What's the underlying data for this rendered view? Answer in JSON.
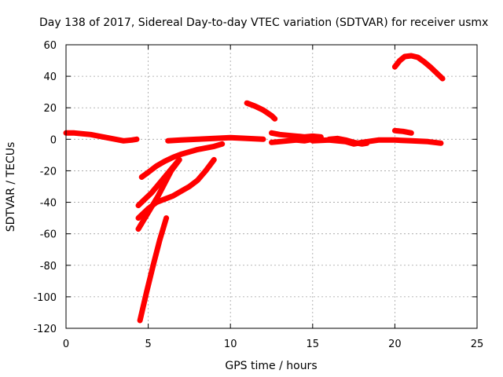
{
  "chart_data": {
    "type": "line",
    "title": "Day 138 of 2017, Sidereal Day-to-day VTEC variation (SDTVAR) for receiver usmx",
    "xlabel": "GPS time / hours",
    "ylabel": "SDTVAR / TECUs",
    "xlim": [
      0,
      25
    ],
    "ylim": [
      -120,
      60
    ],
    "x_ticks": [
      0,
      5,
      10,
      15,
      20,
      25
    ],
    "y_ticks": [
      -120,
      -100,
      -80,
      -60,
      -40,
      -20,
      0,
      20,
      40,
      60
    ],
    "grid": true,
    "color": "#ff0000",
    "series": [
      {
        "name": "sat-a",
        "x": [
          0,
          0.5,
          1,
          1.5,
          2,
          2.5,
          3,
          3.5,
          4,
          4.3
        ],
        "y": [
          4,
          4,
          3.5,
          3,
          2,
          1,
          0,
          -1,
          -0.5,
          0
        ]
      },
      {
        "name": "sat-b",
        "x": [
          6.2,
          7,
          8,
          9,
          10,
          11,
          12
        ],
        "y": [
          -1,
          -0.5,
          0,
          0.5,
          1,
          0.5,
          0
        ]
      },
      {
        "name": "sat-c",
        "x": [
          4.6,
          5,
          5.5,
          6,
          6.5,
          7,
          7.5,
          8,
          8.5,
          9,
          9.5
        ],
        "y": [
          -24,
          -21,
          -17,
          -14,
          -11.5,
          -9.5,
          -8,
          -6.5,
          -5.5,
          -4.5,
          -3
        ]
      },
      {
        "name": "sat-d",
        "x": [
          4.4,
          4.8,
          5.2,
          5.6,
          6,
          6.4,
          6.8
        ],
        "y": [
          -42,
          -38,
          -34,
          -29,
          -24,
          -19,
          -14
        ]
      },
      {
        "name": "sat-e",
        "x": [
          4.4,
          5,
          5.5,
          6,
          6.5,
          7,
          7.5,
          8,
          8.5,
          9
        ],
        "y": [
          -50,
          -44,
          -40,
          -38,
          -36,
          -33,
          -30,
          -26,
          -20,
          -13
        ]
      },
      {
        "name": "sat-f",
        "x": [
          4.4,
          4.8,
          5.2,
          5.6,
          6,
          6.4,
          6.9
        ],
        "y": [
          -57,
          -50,
          -43,
          -36,
          -28,
          -20,
          -13
        ]
      },
      {
        "name": "sat-g",
        "x": [
          4.5,
          4.9,
          5.3,
          5.7,
          6.1
        ],
        "y": [
          -115,
          -97,
          -80,
          -64,
          -50
        ]
      },
      {
        "name": "sat-h",
        "x": [
          11,
          11.5,
          12,
          12.5,
          12.7
        ],
        "y": [
          23,
          21,
          18.5,
          15,
          13
        ]
      },
      {
        "name": "sat-i",
        "x": [
          12.5,
          13,
          13.5,
          14,
          14.5,
          15,
          15.5
        ],
        "y": [
          -2,
          -1.5,
          -1,
          -0.5,
          -1,
          0,
          1
        ]
      },
      {
        "name": "sat-j",
        "x": [
          12.5,
          13,
          13.5,
          14,
          14.5,
          15,
          15.5
        ],
        "y": [
          4,
          3,
          2.5,
          2,
          1.5,
          2,
          1.5
        ]
      },
      {
        "name": "sat-k",
        "x": [
          15,
          16,
          17,
          17.5,
          18,
          19,
          20,
          21,
          22,
          22.8
        ],
        "y": [
          -1,
          -0.5,
          -1.5,
          -3,
          -2,
          -0.5,
          -0.5,
          -1,
          -1.5,
          -2.5
        ]
      },
      {
        "name": "sat-l",
        "x": [
          16,
          16.5,
          17,
          17.5,
          18,
          18.3
        ],
        "y": [
          0,
          0.5,
          -0.5,
          -2,
          -3,
          -2.5
        ]
      },
      {
        "name": "sat-m",
        "x": [
          20,
          20.5,
          21
        ],
        "y": [
          5.5,
          5,
          4
        ]
      },
      {
        "name": "sat-n",
        "x": [
          20,
          20.3,
          20.6,
          21,
          21.4,
          21.8,
          22.2,
          22.6,
          22.9
        ],
        "y": [
          46,
          50,
          52.5,
          53,
          52,
          49,
          45.5,
          41.5,
          38.5
        ]
      }
    ]
  }
}
